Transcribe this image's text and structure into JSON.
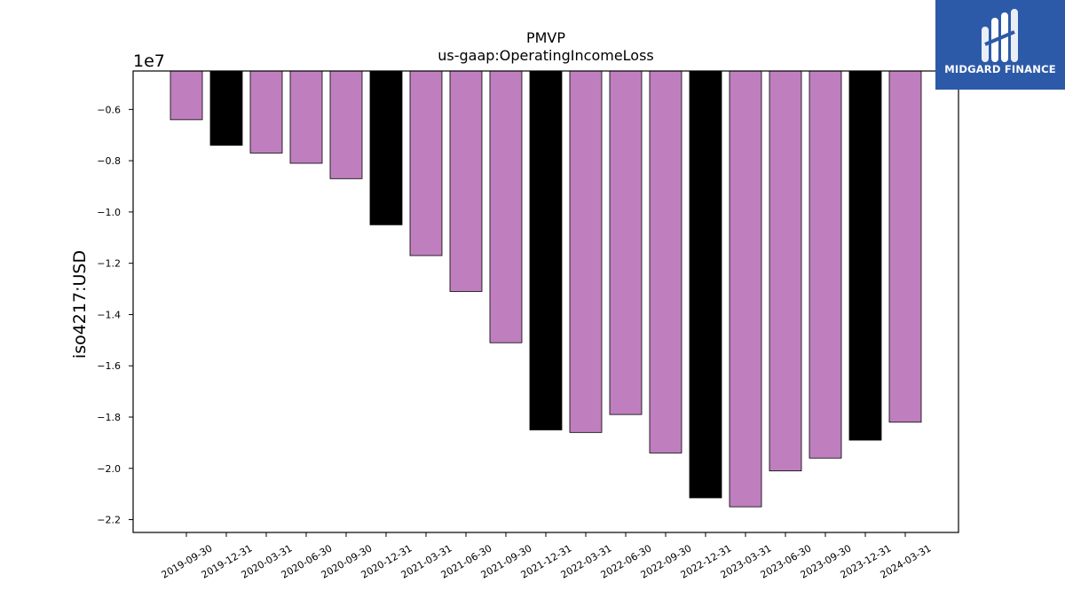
{
  "chart_data": {
    "type": "bar",
    "title": "PMVP",
    "subtitle": "us-gaap:OperatingIncomeLoss",
    "xlabel": "",
    "ylabel": "iso4217:USD",
    "y_offset_label": "1e7",
    "ylim": [
      -22.5,
      -4.5
    ],
    "yticks": [
      -0.6,
      -0.8,
      -1.0,
      -1.2,
      -1.4,
      -1.6,
      -1.8,
      -2.0,
      -2.2
    ],
    "grid": false,
    "categories": [
      "2019-09-30",
      "2019-12-31",
      "2020-03-31",
      "2020-06-30",
      "2020-09-30",
      "2020-12-31",
      "2021-03-31",
      "2021-06-30",
      "2021-09-30",
      "2021-12-31",
      "2022-03-31",
      "2022-06-30",
      "2022-09-30",
      "2022-12-31",
      "2023-03-31",
      "2023-06-30",
      "2023-09-30",
      "2023-12-31",
      "2024-03-31"
    ],
    "values": [
      -6.4,
      -7.4,
      -7.7,
      -8.1,
      -8.7,
      -10.5,
      -11.7,
      -13.1,
      -15.1,
      -18.5,
      -18.6,
      -17.9,
      -19.4,
      -21.15,
      -21.5,
      -20.1,
      -19.6,
      -18.9,
      -18.2
    ],
    "value_unit": "millions USD",
    "colors": {
      "quarter": "#bf7fbf",
      "year_end": "#000000",
      "edge": "#000000"
    },
    "year_end_categories": [
      "2019-12-31",
      "2020-12-31",
      "2021-12-31",
      "2022-12-31",
      "2023-12-31"
    ]
  },
  "logo": {
    "text": "MIDGARD FINANCE",
    "icon": "midgard-logo-icon",
    "background": "#2d5aa8"
  }
}
